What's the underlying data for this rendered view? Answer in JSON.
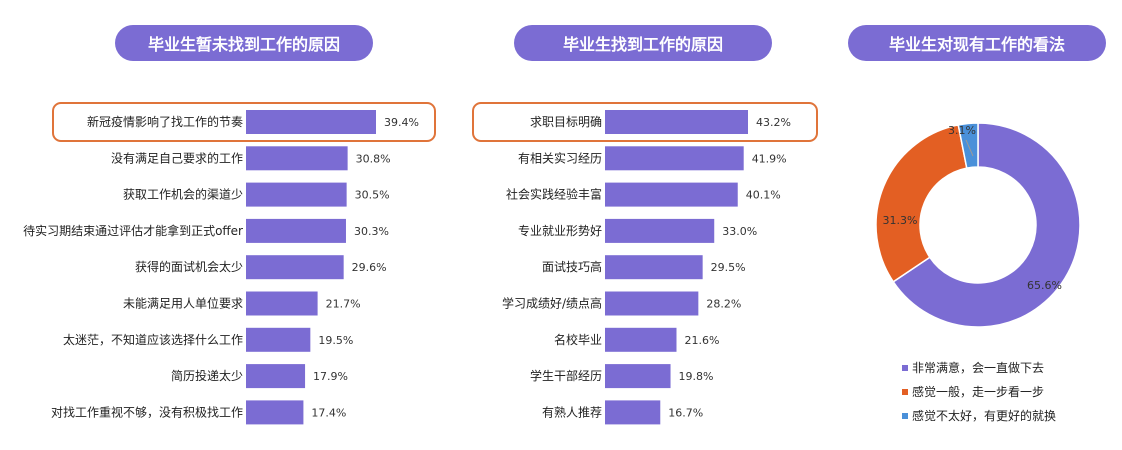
{
  "colors": {
    "bar": "#7b6cd3",
    "highlight": "#e0743a",
    "pie_orange": "#e35f23",
    "pie_blue": "#4a90d9"
  },
  "chart_data": [
    {
      "type": "bar",
      "orientation": "horizontal",
      "title": "毕业生暂未找到工作的原因",
      "categories": [
        "新冠疫情影响了找工作的节奏",
        "没有满足自己要求的工作",
        "获取工作机会的渠道少",
        "待实习期结束通过评估才能拿到正式offer",
        "获得的面试机会太少",
        "未能满足用人单位要求",
        "太迷茫，不知道应该选择什么工作",
        "简历投递太少",
        "对找工作重视不够，没有积极找工作"
      ],
      "values": [
        39.4,
        30.8,
        30.5,
        30.3,
        29.6,
        21.7,
        19.5,
        17.9,
        17.4
      ],
      "labels": [
        "39.4%",
        "30.8%",
        "30.5%",
        "30.3%",
        "29.6%",
        "21.7%",
        "19.5%",
        "17.9%",
        "17.4%"
      ],
      "highlight_index": 0
    },
    {
      "type": "bar",
      "orientation": "horizontal",
      "title": "毕业生找到工作的原因",
      "categories": [
        "求职目标明确",
        "有相关实习经历",
        "社会实践经验丰富",
        "专业就业形势好",
        "面试技巧高",
        "学习成绩好/绩点高",
        "名校毕业",
        "学生干部经历",
        "有熟人推荐"
      ],
      "values": [
        43.2,
        41.9,
        40.1,
        33.0,
        29.5,
        28.2,
        21.6,
        19.8,
        16.7
      ],
      "labels": [
        "43.2%",
        "41.9%",
        "40.1%",
        "33.0%",
        "29.5%",
        "28.2%",
        "21.6%",
        "19.8%",
        "16.7%"
      ],
      "highlight_index": 0
    },
    {
      "type": "pie",
      "donut": true,
      "title": "毕业生对现有工作的看法",
      "categories": [
        "非常满意，会一直做下去",
        "感觉一般，走一步看一步",
        "感觉不太好，有更好的就换"
      ],
      "values": [
        65.6,
        31.3,
        3.1
      ],
      "labels": [
        "65.6%",
        "31.3%",
        "3.1%"
      ],
      "legend_position": "bottom"
    }
  ]
}
